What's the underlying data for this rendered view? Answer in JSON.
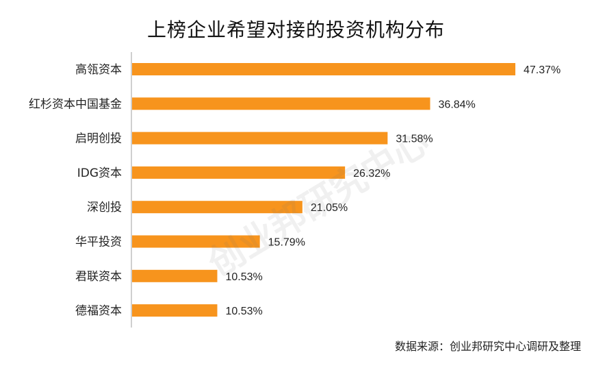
{
  "title": "上榜企业希望对接的投资机构分布",
  "watermark": "创业邦研究中心",
  "source": "数据来源：创业邦研究中心调研及整理",
  "colors": {
    "bar": "#F7941D",
    "axis": "#BFBFBF",
    "text": "#222222"
  },
  "chart_data": {
    "type": "bar",
    "orientation": "horizontal",
    "categories": [
      "高瓴资本",
      "红杉资本中国基金",
      "启明创投",
      "IDG资本",
      "深创投",
      "华平投资",
      "君联资本",
      "德福资本"
    ],
    "values": [
      47.37,
      36.84,
      31.58,
      26.32,
      21.05,
      15.79,
      10.53,
      10.53
    ],
    "value_labels": [
      "47.37%",
      "36.84%",
      "31.58%",
      "26.32%",
      "21.05%",
      "15.79%",
      "10.53%",
      "10.53%"
    ],
    "unit": "%",
    "xlim": [
      0,
      47.37
    ],
    "grid": false,
    "legend": "none"
  }
}
